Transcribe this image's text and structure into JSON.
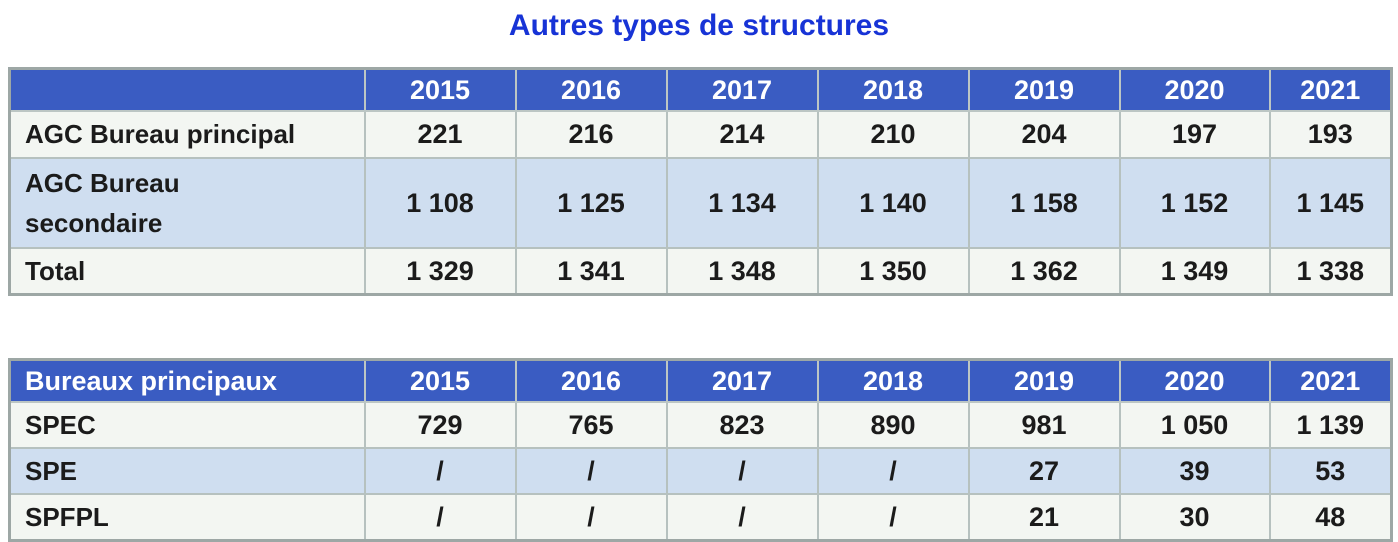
{
  "title": {
    "text": "Autres types de structures"
  },
  "colors": {
    "title_blue": "#1733d6",
    "header_bg": "#3a5cc2",
    "header_text": "#ffffff",
    "row_light": "#f3f6f2",
    "row_alt_blue": "#cfdef0",
    "border": "#b6c1bf"
  },
  "tables": [
    {
      "header": [
        "",
        "2015",
        "2016",
        "2017",
        "2018",
        "2019",
        "2020",
        "2021"
      ],
      "rows": [
        {
          "label": "AGC Bureau principal",
          "values": [
            "221",
            "216",
            "214",
            "210",
            "204",
            "197",
            "193"
          ]
        },
        {
          "label": "AGC Bureau\nsecondaire",
          "values": [
            "1 108",
            "1 125",
            "1 134",
            "1 140",
            "1 158",
            "1 152",
            "1 145"
          ]
        },
        {
          "label": "Total",
          "values": [
            "1 329",
            "1 341",
            "1 348",
            "1 350",
            "1 362",
            "1 349",
            "1 338"
          ]
        }
      ]
    },
    {
      "header": [
        "Bureaux principaux",
        "2015",
        "2016",
        "2017",
        "2018",
        "2019",
        "2020",
        "2021"
      ],
      "rows": [
        {
          "label": "SPEC",
          "values": [
            "729",
            "765",
            "823",
            "890",
            "981",
            "1 050",
            "1 139"
          ]
        },
        {
          "label": "SPE",
          "values": [
            "/",
            "/",
            "/",
            "/",
            "27",
            "39",
            "53"
          ]
        },
        {
          "label": "SPFPL",
          "values": [
            "/",
            "/",
            "/",
            "/",
            "21",
            "30",
            "48"
          ]
        }
      ]
    }
  ]
}
